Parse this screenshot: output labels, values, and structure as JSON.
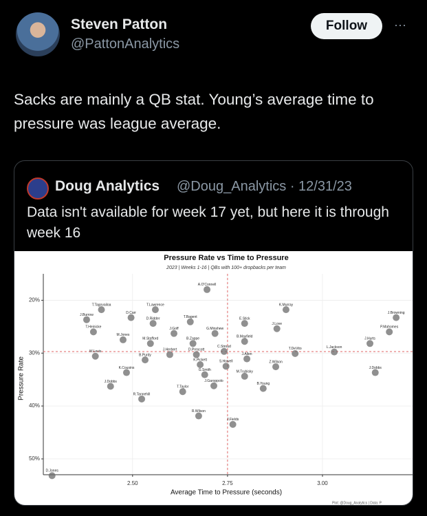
{
  "tweet": {
    "author_name": "Steven Patton",
    "author_handle": "@PattonAnalytics",
    "follow_button": "Follow",
    "more": "···",
    "text": "Sacks are mainly a QB stat. Young’s average time to pressure was league average.",
    "quote": {
      "author_name": "Doug Analytics",
      "meta": "@Doug_Analytics · 12/31/23",
      "text": "Data isn't available for week 17 yet, but here it is through week 16"
    }
  },
  "chart_data": {
    "type": "scatter",
    "title": "Pressure Rate vs Time to Pressure",
    "subtitle": "2023 | Weeks 1-16 | QBs with 100+ dropbacks per team",
    "x_label": "Average Time to Pressure (seconds)",
    "y_label": "Pressure Rate",
    "caption": "Plot: @Doug_Analytics | Data: P",
    "color": "#6b6b6b",
    "labels": [
      "A.O'Connell",
      "T.Tagovailoa",
      "J.Burrow",
      "D.Carr",
      "T.Lawrence",
      "D.Ridder",
      "T.Bagent",
      "T.Heinicke",
      "J.Goff",
      "G.Minshew",
      "E.Stick",
      "K.Murray",
      "J.Love",
      "J.Browning",
      "P.Mahomes",
      "J.Hurts",
      "M.Jones",
      "M.Stafford",
      "B.Zappe",
      "B.Mayfield",
      "C.Stroud",
      "L.Jackson",
      "T.DeVito",
      "J.Herbert",
      "D.Prescott",
      "W.Levis",
      "B.Purdy",
      "J.Allen",
      "K.Pickett",
      "S.Howell",
      "Z.Wilson",
      "K.Cousins",
      "G.Smith",
      "M.Trubisky",
      "J.Dobbs",
      "J.Dobbs",
      "J.Garoppolo",
      "B.Young",
      "T.Taylor",
      "R.Tannehill",
      "R.Wilson",
      "J.Fields",
      "D.Jones"
    ],
    "x": [
      2.696,
      2.418,
      2.379,
      2.496,
      2.56,
      2.554,
      2.652,
      2.397,
      2.609,
      2.717,
      2.795,
      2.904,
      2.88,
      3.194,
      3.176,
      3.125,
      2.475,
      2.547,
      2.659,
      2.795,
      2.741,
      3.031,
      2.928,
      2.598,
      2.668,
      2.402,
      2.533,
      2.801,
      2.678,
      2.746,
      2.877,
      2.484,
      2.69,
      2.795,
      3.139,
      2.442,
      2.714,
      2.844,
      2.632,
      2.524,
      2.674,
      2.764,
      2.288
    ],
    "values": [
      17.2,
      21.0,
      22.9,
      22.5,
      21.0,
      23.6,
      23.3,
      25.2,
      25.5,
      25.5,
      23.6,
      21.0,
      24.6,
      22.5,
      25.2,
      27.4,
      26.7,
      27.4,
      27.4,
      27.0,
      28.9,
      29.0,
      29.3,
      29.5,
      29.5,
      29.8,
      30.5,
      30.3,
      31.4,
      31.7,
      31.8,
      32.9,
      33.3,
      33.6,
      32.9,
      35.5,
      35.4,
      35.9,
      36.5,
      37.9,
      41.1,
      42.7,
      52.4
    ],
    "xlim": [
      2.265,
      3.239
    ],
    "ylim": [
      53,
      15
    ],
    "xticks": [
      {
        "value": 2.5,
        "label": "2.50"
      },
      {
        "value": 2.75,
        "label": "2.75"
      },
      {
        "value": 3.0,
        "label": "3.00"
      }
    ],
    "yticks": [
      {
        "value": 20,
        "label": "20%"
      },
      {
        "value": 30,
        "label": "30%"
      },
      {
        "value": 40,
        "label": "40%"
      },
      {
        "value": 50,
        "label": "50%"
      }
    ],
    "reference_lines": {
      "x": 2.75,
      "y": 29.7,
      "color": "#e06666"
    },
    "grid": true
  }
}
